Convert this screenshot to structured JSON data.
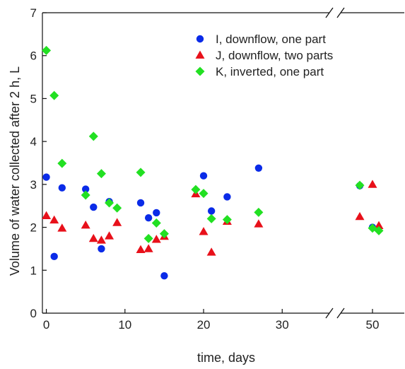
{
  "chart_data": {
    "type": "scatter",
    "xlabel": "time, days",
    "ylabel": "Volume of water collected after 2 h, L",
    "ylim": [
      0,
      7
    ],
    "yticks": [
      0,
      1,
      2,
      3,
      4,
      5,
      6,
      7
    ],
    "x_axis_segments": [
      {
        "range": [
          -0.5,
          36
        ],
        "ticks": [
          0,
          10,
          20,
          30
        ]
      },
      {
        "range": [
          45,
          55
        ],
        "ticks": [
          50
        ]
      }
    ],
    "axis_break": true,
    "legend_position": "top-right",
    "grid": false,
    "series": [
      {
        "name": "I, downflow, one part",
        "marker": "circle",
        "color": "#0a2be8",
        "points": [
          [
            0,
            3.17
          ],
          [
            1,
            1.32
          ],
          [
            2,
            2.92
          ],
          [
            5,
            2.89
          ],
          [
            6,
            2.47
          ],
          [
            7,
            1.5
          ],
          [
            8,
            2.6
          ],
          [
            12,
            2.57
          ],
          [
            13,
            2.22
          ],
          [
            14,
            2.34
          ],
          [
            15,
            0.87
          ],
          [
            20,
            3.2
          ],
          [
            21,
            2.38
          ],
          [
            23,
            2.71
          ],
          [
            27,
            3.38
          ],
          [
            48,
            2.97
          ],
          [
            50,
            2.0
          ]
        ]
      },
      {
        "name": "J, downflow, two parts",
        "marker": "triangle",
        "color": "#e8101a",
        "points": [
          [
            0,
            2.27
          ],
          [
            1,
            2.17
          ],
          [
            2,
            1.98
          ],
          [
            5,
            2.05
          ],
          [
            6,
            1.74
          ],
          [
            7,
            1.7
          ],
          [
            8,
            1.8
          ],
          [
            9,
            2.11
          ],
          [
            12,
            1.48
          ],
          [
            13,
            1.5
          ],
          [
            14,
            1.72
          ],
          [
            15,
            1.79
          ],
          [
            19,
            2.78
          ],
          [
            20,
            1.9
          ],
          [
            21,
            1.42
          ],
          [
            23,
            2.14
          ],
          [
            27,
            2.08
          ],
          [
            48,
            2.25
          ],
          [
            50,
            3.0
          ],
          [
            51,
            2.04
          ]
        ]
      },
      {
        "name": "K, inverted, one part",
        "marker": "diamond",
        "color": "#22e022",
        "points": [
          [
            0,
            6.12
          ],
          [
            1,
            5.07
          ],
          [
            2,
            3.49
          ],
          [
            5,
            2.75
          ],
          [
            6,
            4.12
          ],
          [
            7,
            3.25
          ],
          [
            8,
            2.57
          ],
          [
            9,
            2.45
          ],
          [
            12,
            3.28
          ],
          [
            13,
            1.74
          ],
          [
            14,
            2.1
          ],
          [
            15,
            1.85
          ],
          [
            19,
            2.88
          ],
          [
            20,
            2.79
          ],
          [
            21,
            2.2
          ],
          [
            23,
            2.18
          ],
          [
            27,
            2.35
          ],
          [
            48,
            2.98
          ],
          [
            50,
            1.98
          ],
          [
            51,
            1.92
          ]
        ]
      }
    ]
  }
}
